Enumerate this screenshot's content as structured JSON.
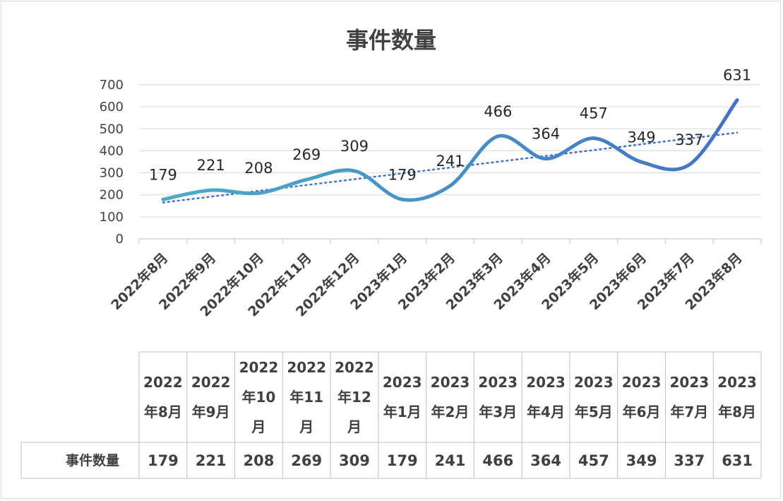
{
  "chart_data": {
    "type": "line",
    "title": "事件数量",
    "categories": [
      "2022年8月",
      "2022年9月",
      "2022年10月",
      "2022年11月",
      "2022年12月",
      "2023年1月",
      "2023年2月",
      "2023年3月",
      "2023年4月",
      "2023年5月",
      "2023年6月",
      "2023年7月",
      "2023年8月"
    ],
    "table_headers": [
      [
        "2022",
        "年8月"
      ],
      [
        "2022",
        "年9月"
      ],
      [
        "2022",
        "年10",
        "月"
      ],
      [
        "2022",
        "年11",
        "月"
      ],
      [
        "2022",
        "年12",
        "月"
      ],
      [
        "2023",
        "年1月"
      ],
      [
        "2023",
        "年2月"
      ],
      [
        "2023",
        "年3月"
      ],
      [
        "2023",
        "年4月"
      ],
      [
        "2023",
        "年5月"
      ],
      [
        "2023",
        "年6月"
      ],
      [
        "2023",
        "年7月"
      ],
      [
        "2023",
        "年8月"
      ]
    ],
    "series": [
      {
        "name": "事件数量",
        "values": [
          179,
          221,
          208,
          269,
          309,
          179,
          241,
          466,
          364,
          457,
          349,
          337,
          631
        ]
      }
    ],
    "trendline": {
      "type": "linear",
      "style": "dotted",
      "color": "#4472c4"
    },
    "ylim": [
      0,
      700
    ],
    "yticks": [
      0,
      100,
      200,
      300,
      400,
      500,
      600,
      700
    ],
    "grid": true,
    "data_labels": true,
    "data_table": true,
    "colors": {
      "line_start": "#4bacc6",
      "line_end": "#4472c4",
      "grid": "#d9d9d9",
      "text": "#404040"
    }
  }
}
